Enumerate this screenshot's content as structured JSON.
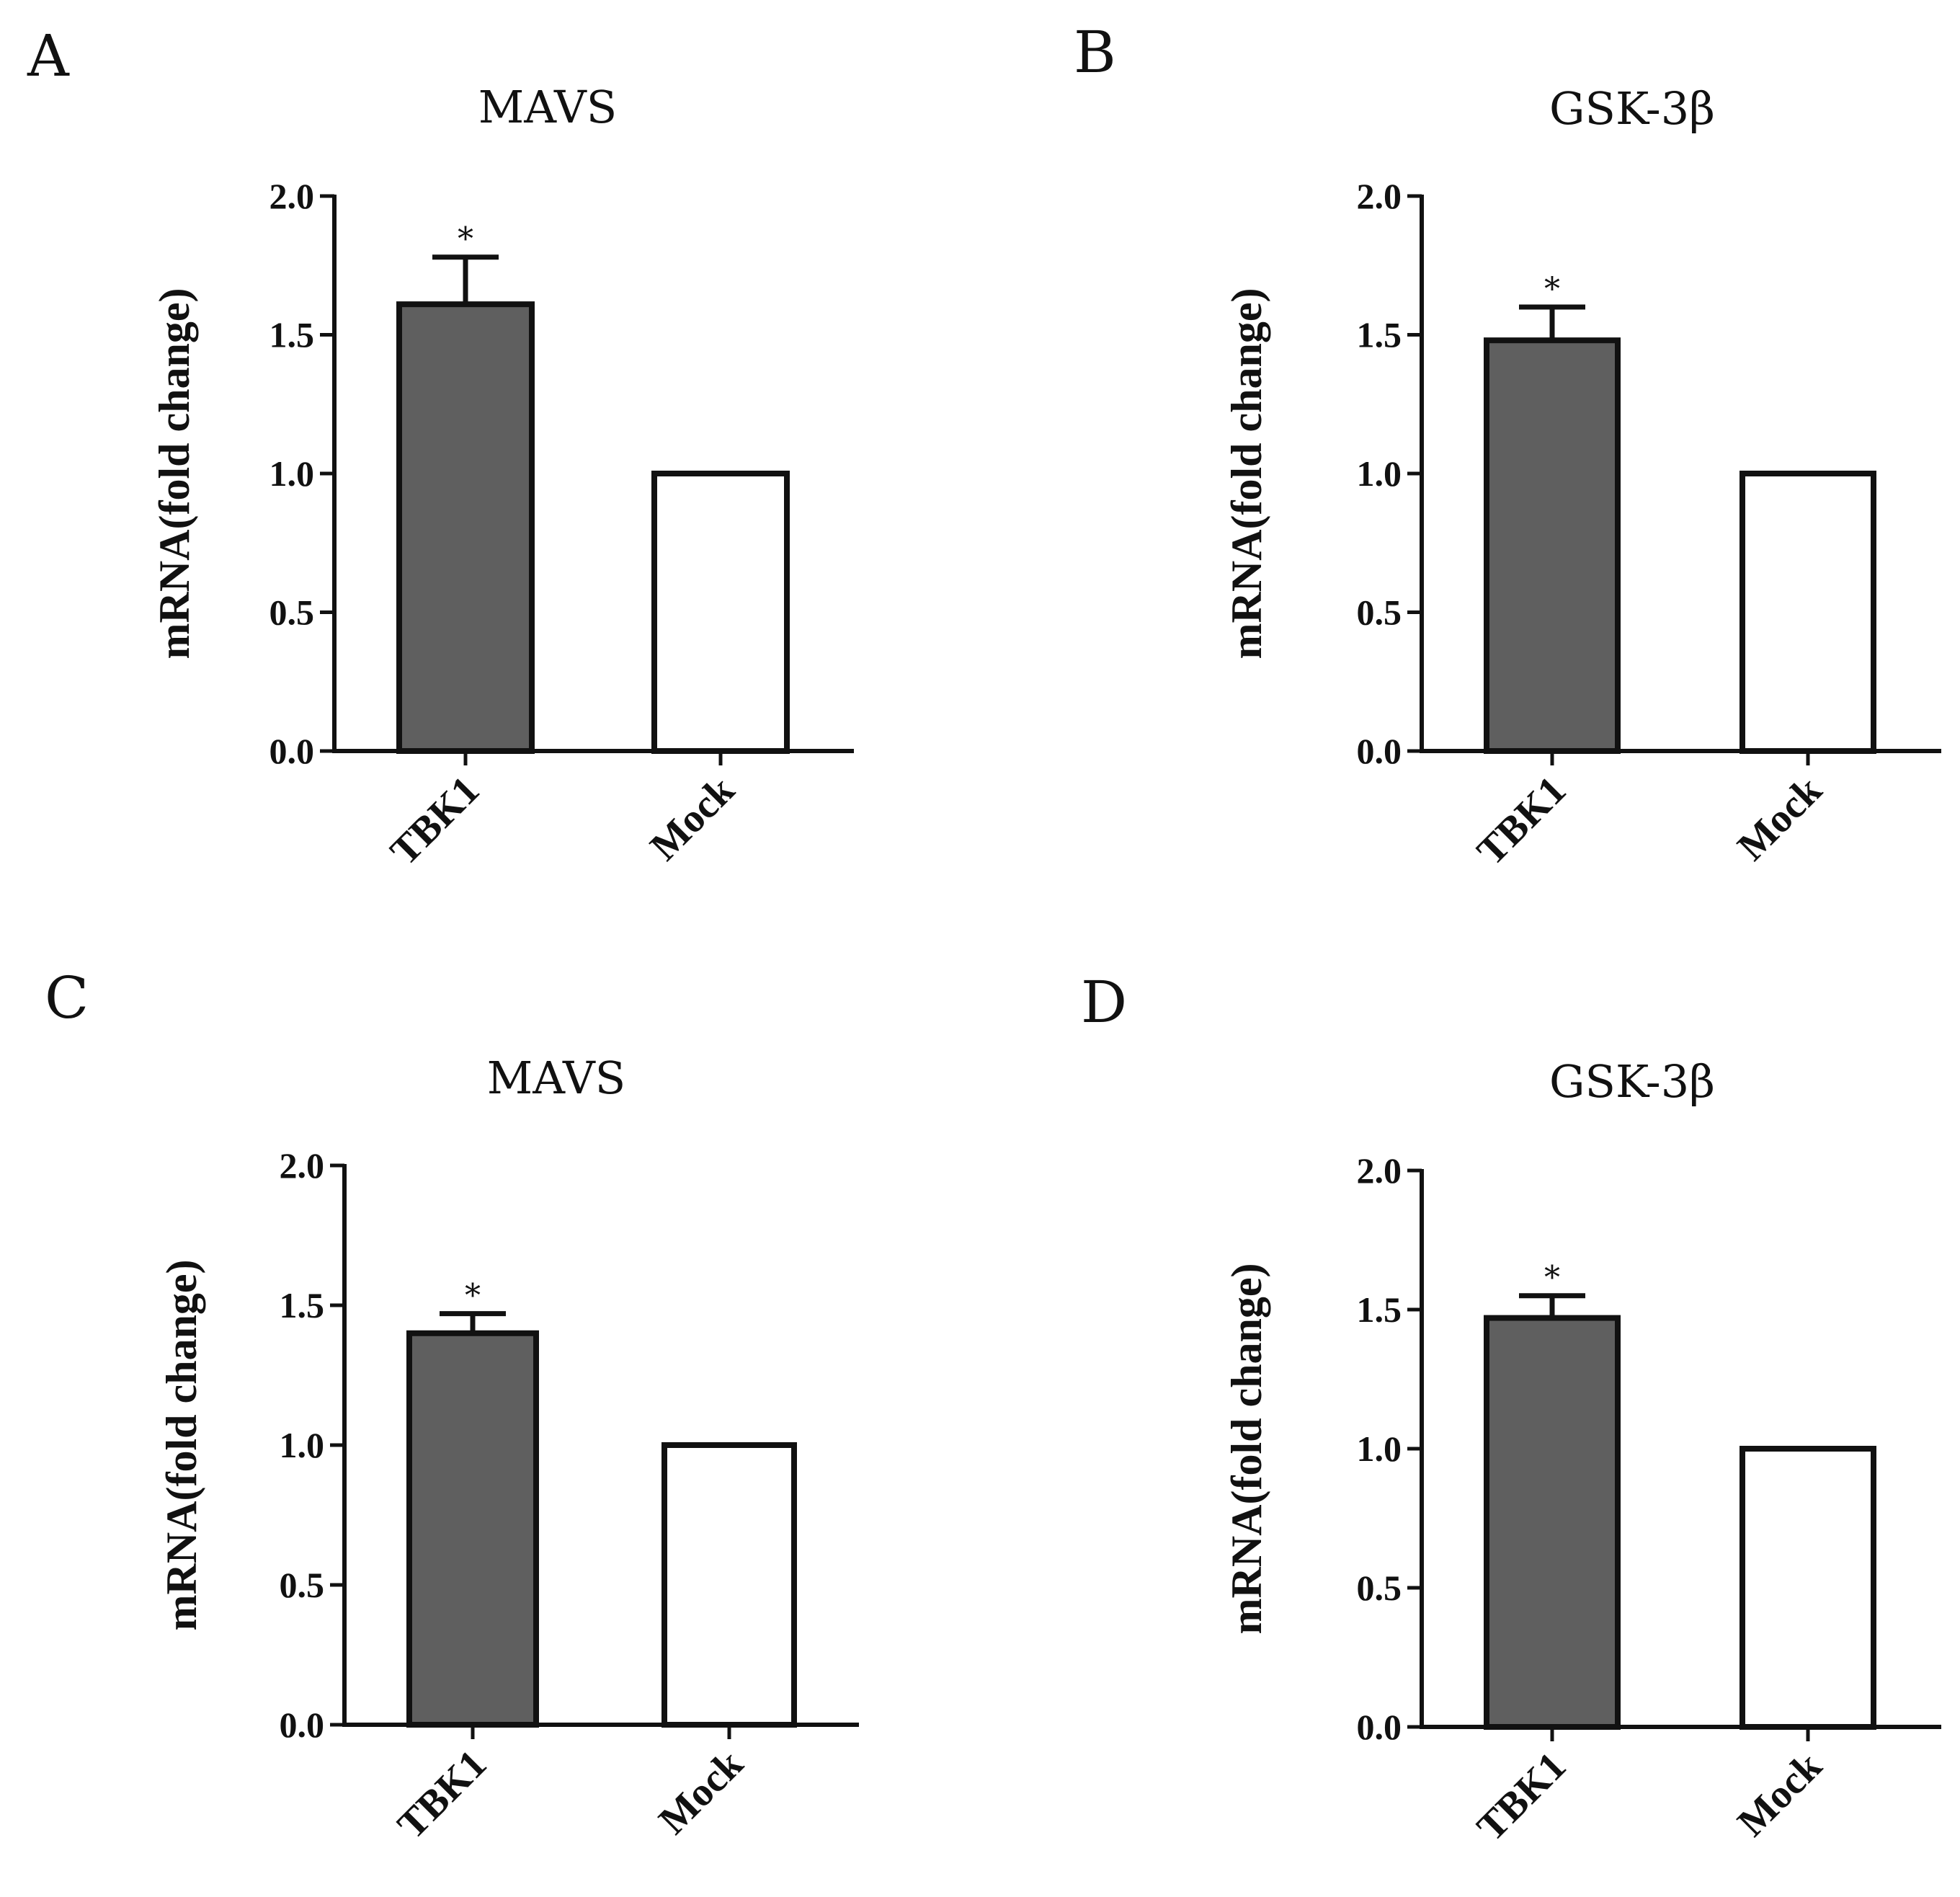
{
  "chart_data": [
    {
      "panel": "A",
      "type": "bar",
      "title": "MAVS",
      "xlabel": "",
      "ylabel": "mRNA(fold change)",
      "categories": [
        "TBK1",
        "Mock"
      ],
      "values": [
        1.61,
        1.0
      ],
      "errors": [
        0.17,
        0.0
      ],
      "significance": [
        "*",
        ""
      ],
      "bar_colors": [
        "#5f5f5f",
        "#ffffff"
      ],
      "ylim": [
        0,
        2.0
      ],
      "yticks": [
        "0.0",
        "0.5",
        "1.0",
        "1.5",
        "2.0"
      ],
      "grid": false
    },
    {
      "panel": "B",
      "type": "bar",
      "title": "GSK-3β",
      "xlabel": "",
      "ylabel": "mRNA(fold change)",
      "categories": [
        "TBK1",
        "Mock"
      ],
      "values": [
        1.48,
        1.0
      ],
      "errors": [
        0.12,
        0.0
      ],
      "significance": [
        "*",
        ""
      ],
      "bar_colors": [
        "#5f5f5f",
        "#ffffff"
      ],
      "ylim": [
        0,
        2.0
      ],
      "yticks": [
        "0.0",
        "0.5",
        "1.0",
        "1.5",
        "2.0"
      ],
      "grid": false
    },
    {
      "panel": "C",
      "type": "bar",
      "title": "MAVS",
      "xlabel": "",
      "ylabel": "mRNA(fold change)",
      "categories": [
        "TBK1",
        "Mock"
      ],
      "values": [
        1.4,
        1.0
      ],
      "errors": [
        0.07,
        0.0
      ],
      "significance": [
        "*",
        ""
      ],
      "bar_colors": [
        "#5f5f5f",
        "#ffffff"
      ],
      "ylim": [
        0,
        2.0
      ],
      "yticks": [
        "0.0",
        "0.5",
        "1.0",
        "1.5",
        "2.0"
      ],
      "grid": false
    },
    {
      "panel": "D",
      "type": "bar",
      "title": "GSK-3β",
      "xlabel": "",
      "ylabel": "mRNA(fold change)",
      "categories": [
        "TBK1",
        "Mock"
      ],
      "values": [
        1.47,
        1.0
      ],
      "errors": [
        0.08,
        0.0
      ],
      "significance": [
        "*",
        ""
      ],
      "bar_colors": [
        "#5f5f5f",
        "#ffffff"
      ],
      "ylim": [
        0,
        2.0
      ],
      "yticks": [
        "0.0",
        "0.5",
        "1.0",
        "1.5",
        "2.0"
      ],
      "grid": false
    }
  ]
}
